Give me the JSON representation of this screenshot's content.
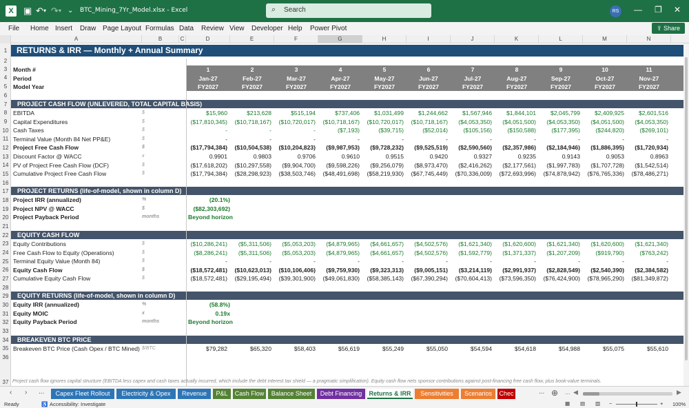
{
  "window": {
    "file_name": "BTC_Mining_7Yr_Model.xlsx",
    "app": "Excel",
    "title_sep": "-",
    "search_placeholder": "Search",
    "avatar_initials": "RS"
  },
  "menu": [
    "File",
    "Home",
    "Insert",
    "Draw",
    "Page Layout",
    "Formulas",
    "Data",
    "Review",
    "View",
    "Developer",
    "Help",
    "Power Pivot"
  ],
  "share_label": "Share",
  "columns": [
    "A",
    "B",
    "C",
    "D",
    "E",
    "F",
    "G",
    "H",
    "I",
    "J",
    "K",
    "L",
    "M",
    "N"
  ],
  "rows": [
    "1",
    "2",
    "3",
    "4",
    "5",
    "6",
    "7",
    "8",
    "9",
    "10",
    "11",
    "12",
    "13",
    "14",
    "15",
    "16",
    "17",
    "18",
    "19",
    "20",
    "21",
    "22",
    "23",
    "24",
    "25",
    "26",
    "27",
    "28",
    "29",
    "30",
    "31",
    "32",
    "33",
    "34",
    "35",
    "36",
    "37"
  ],
  "title": "RETURNS & IRR  —  Monthly + Annual Summary",
  "header_labels": [
    "Month #",
    "Period",
    "Model Year"
  ],
  "months": [
    "1",
    "2",
    "3",
    "4",
    "5",
    "6",
    "7",
    "8",
    "9",
    "10",
    "11"
  ],
  "periods": [
    "Jan-27",
    "Feb-27",
    "Mar-27",
    "Apr-27",
    "May-27",
    "Jun-27",
    "Jul-27",
    "Aug-27",
    "Sep-27",
    "Oct-27",
    "Nov-27"
  ],
  "model_years": [
    "FY2027",
    "FY2027",
    "FY2027",
    "FY2027",
    "FY2027",
    "FY2027",
    "FY2027",
    "FY2027",
    "FY2027",
    "FY2027",
    "FY2027"
  ],
  "sections": {
    "pcf": "PROJECT CASH FLOW (UNLEVERED, TOTAL CAPITAL BASIS)",
    "pr": "PROJECT RETURNS  (life-of-model, shown in column D)",
    "ecf": "EQUITY CASH FLOW",
    "er": "EQUITY RETURNS  (life-of-model, shown in column D)",
    "be": "BREAKEVEN BTC PRICE"
  },
  "pcf_rows": [
    {
      "label": "EBITDA",
      "unit": "$",
      "style": "g",
      "values": [
        "$15,960",
        "$213,628",
        "$515,194",
        "$737,406",
        "$1,031,499",
        "$1,244,662",
        "$1,567,946",
        "$1,844,101",
        "$2,045,799",
        "$2,409,925",
        "$2,601,516"
      ]
    },
    {
      "label": "Capital Expenditures",
      "unit": "$",
      "style": "g",
      "values": [
        "($17,810,345)",
        "($10,718,167)",
        "($10,720,017)",
        "($10,718,167)",
        "($10,720,017)",
        "($10,718,167)",
        "($4,053,350)",
        "($4,051,500)",
        "($4,053,350)",
        "($4,051,500)",
        "($4,053,350)"
      ]
    },
    {
      "label": "Cash Taxes",
      "unit": "$",
      "style": "g",
      "values": [
        "-",
        "-",
        "-",
        "($7,193)",
        "($39,715)",
        "($52,014)",
        "($105,156)",
        "($150,588)",
        "($177,395)",
        "($244,820)",
        "($269,101)"
      ]
    },
    {
      "label": "Terminal Value (Month 84 Net PP&E)",
      "unit": "$",
      "style": "",
      "values": [
        "-",
        "-",
        "-",
        "-",
        "-",
        "-",
        "-",
        "-",
        "-",
        "-",
        "-"
      ]
    },
    {
      "label": "Project Free Cash Flow",
      "unit": "$",
      "style": "b",
      "values": [
        "($17,794,384)",
        "($10,504,538)",
        "($10,204,823)",
        "($9,987,953)",
        "($9,728,232)",
        "($9,525,519)",
        "($2,590,560)",
        "($2,357,986)",
        "($2,184,946)",
        "($1,886,395)",
        "($1,720,934)"
      ]
    },
    {
      "label": "Discount Factor @ WACC",
      "unit": "x",
      "style": "",
      "values": [
        "0.9901",
        "0.9803",
        "0.9706",
        "0.9610",
        "0.9515",
        "0.9420",
        "0.9327",
        "0.9235",
        "0.9143",
        "0.9053",
        "0.8963"
      ]
    },
    {
      "label": "PV of Project Free Cash Flow (DCF)",
      "unit": "$",
      "style": "",
      "values": [
        "($17,618,202)",
        "($10,297,558)",
        "($9,904,700)",
        "($9,598,226)",
        "($9,256,079)",
        "($8,973,470)",
        "($2,416,262)",
        "($2,177,561)",
        "($1,997,783)",
        "($1,707,728)",
        "($1,542,514)"
      ]
    },
    {
      "label": "Cumulative Project Free Cash Flow",
      "unit": "$",
      "style": "",
      "values": [
        "($17,794,384)",
        "($28,298,923)",
        "($38,503,746)",
        "($48,491,698)",
        "($58,219,930)",
        "($67,745,449)",
        "($70,336,009)",
        "($72,693,996)",
        "($74,878,942)",
        "($76,765,336)",
        "($78,486,271)"
      ]
    }
  ],
  "pr_rows": [
    {
      "label": "Project IRR (annualized)",
      "unit": "%",
      "value": "(20.1%)"
    },
    {
      "label": "Project NPV @ WACC",
      "unit": "$",
      "value": "($82,303,692)"
    },
    {
      "label": "Project Payback Period",
      "unit": "months",
      "value": "Beyond horizon"
    }
  ],
  "ecf_rows": [
    {
      "label": "Equity Contributions",
      "unit": "$",
      "style": "g",
      "values": [
        "($10,286,241)",
        "($5,311,506)",
        "($5,053,203)",
        "($4,879,965)",
        "($4,661,657)",
        "($4,502,576)",
        "($1,621,340)",
        "($1,620,600)",
        "($1,621,340)",
        "($1,620,600)",
        "($1,621,340)"
      ]
    },
    {
      "label": "Free Cash Flow to Equity (Operations)",
      "unit": "$",
      "style": "g",
      "values": [
        "($8,286,241)",
        "($5,311,506)",
        "($5,053,203)",
        "($4,879,965)",
        "($4,661,657)",
        "($4,502,576)",
        "($1,592,779)",
        "($1,371,337)",
        "($1,207,209)",
        "($919,790)",
        "($763,242)"
      ]
    },
    {
      "label": "Terminal Equity Value (Month 84)",
      "unit": "$",
      "style": "",
      "values": [
        "-",
        "-",
        "-",
        "-",
        "-",
        "-",
        "-",
        "-",
        "-",
        "-",
        "-"
      ]
    },
    {
      "label": "Equity Cash Flow",
      "unit": "$",
      "style": "b",
      "values": [
        "($18,572,481)",
        "($10,623,013)",
        "($10,106,406)",
        "($9,759,930)",
        "($9,323,313)",
        "($9,005,151)",
        "($3,214,119)",
        "($2,991,937)",
        "($2,828,549)",
        "($2,540,390)",
        "($2,384,582)"
      ]
    },
    {
      "label": "Cumulative Equity Cash Flow",
      "unit": "$",
      "style": "",
      "values": [
        "($18,572,481)",
        "($29,195,494)",
        "($39,301,900)",
        "($49,061,830)",
        "($58,385,143)",
        "($67,390,294)",
        "($70,604,413)",
        "($73,596,350)",
        "($76,424,900)",
        "($78,965,290)",
        "($81,349,872)"
      ]
    }
  ],
  "er_rows": [
    {
      "label": "Equity IRR (annualized)",
      "unit": "%",
      "value": "(58.8%)"
    },
    {
      "label": "Equity MOIC",
      "unit": "x",
      "value": "0.19x"
    },
    {
      "label": "Equity Payback Period",
      "unit": "months",
      "value": "Beyond horizon"
    }
  ],
  "be_row": {
    "label": "Breakeven BTC Price (Cash Opex / BTC Mined)",
    "unit": "$/BTC",
    "values": [
      "$79,282",
      "$65,320",
      "$58,403",
      "$56,619",
      "$55,249",
      "$55,050",
      "$54,594",
      "$54,618",
      "$54,988",
      "$55,075",
      "$55,610"
    ]
  },
  "footnote": "Project cash flow ignores capital structure (EBITDA less capex and cash taxes actually incurred, which include the debt interest tax shield — a pragmatic simplification). Equity cash flow nets sponsor contributions against post-financing free cash flow, plus book-value terminals.",
  "tabs": [
    {
      "label": "Capex Fleet Rollout",
      "color": "#2e75b6"
    },
    {
      "label": "Electricity & Opex",
      "color": "#2e75b6"
    },
    {
      "label": "Revenue",
      "color": "#2e75b6"
    },
    {
      "label": "P&L",
      "color": "#548235"
    },
    {
      "label": "Cash Flow",
      "color": "#548235"
    },
    {
      "label": "Balance Sheet",
      "color": "#548235"
    },
    {
      "label": "Debt Financing",
      "color": "#7030a0"
    },
    {
      "label": "Returns & IRR",
      "color": "#ffffff"
    },
    {
      "label": "Sensitivities",
      "color": "#ed7d31"
    },
    {
      "label": "Scenarios",
      "color": "#ed7d31"
    },
    {
      "label": "Chec",
      "color": "#c00000"
    }
  ],
  "status": {
    "ready": "Ready",
    "accessibility": "Accessibility: Investigate",
    "zoom": "100%",
    "more": "..."
  }
}
